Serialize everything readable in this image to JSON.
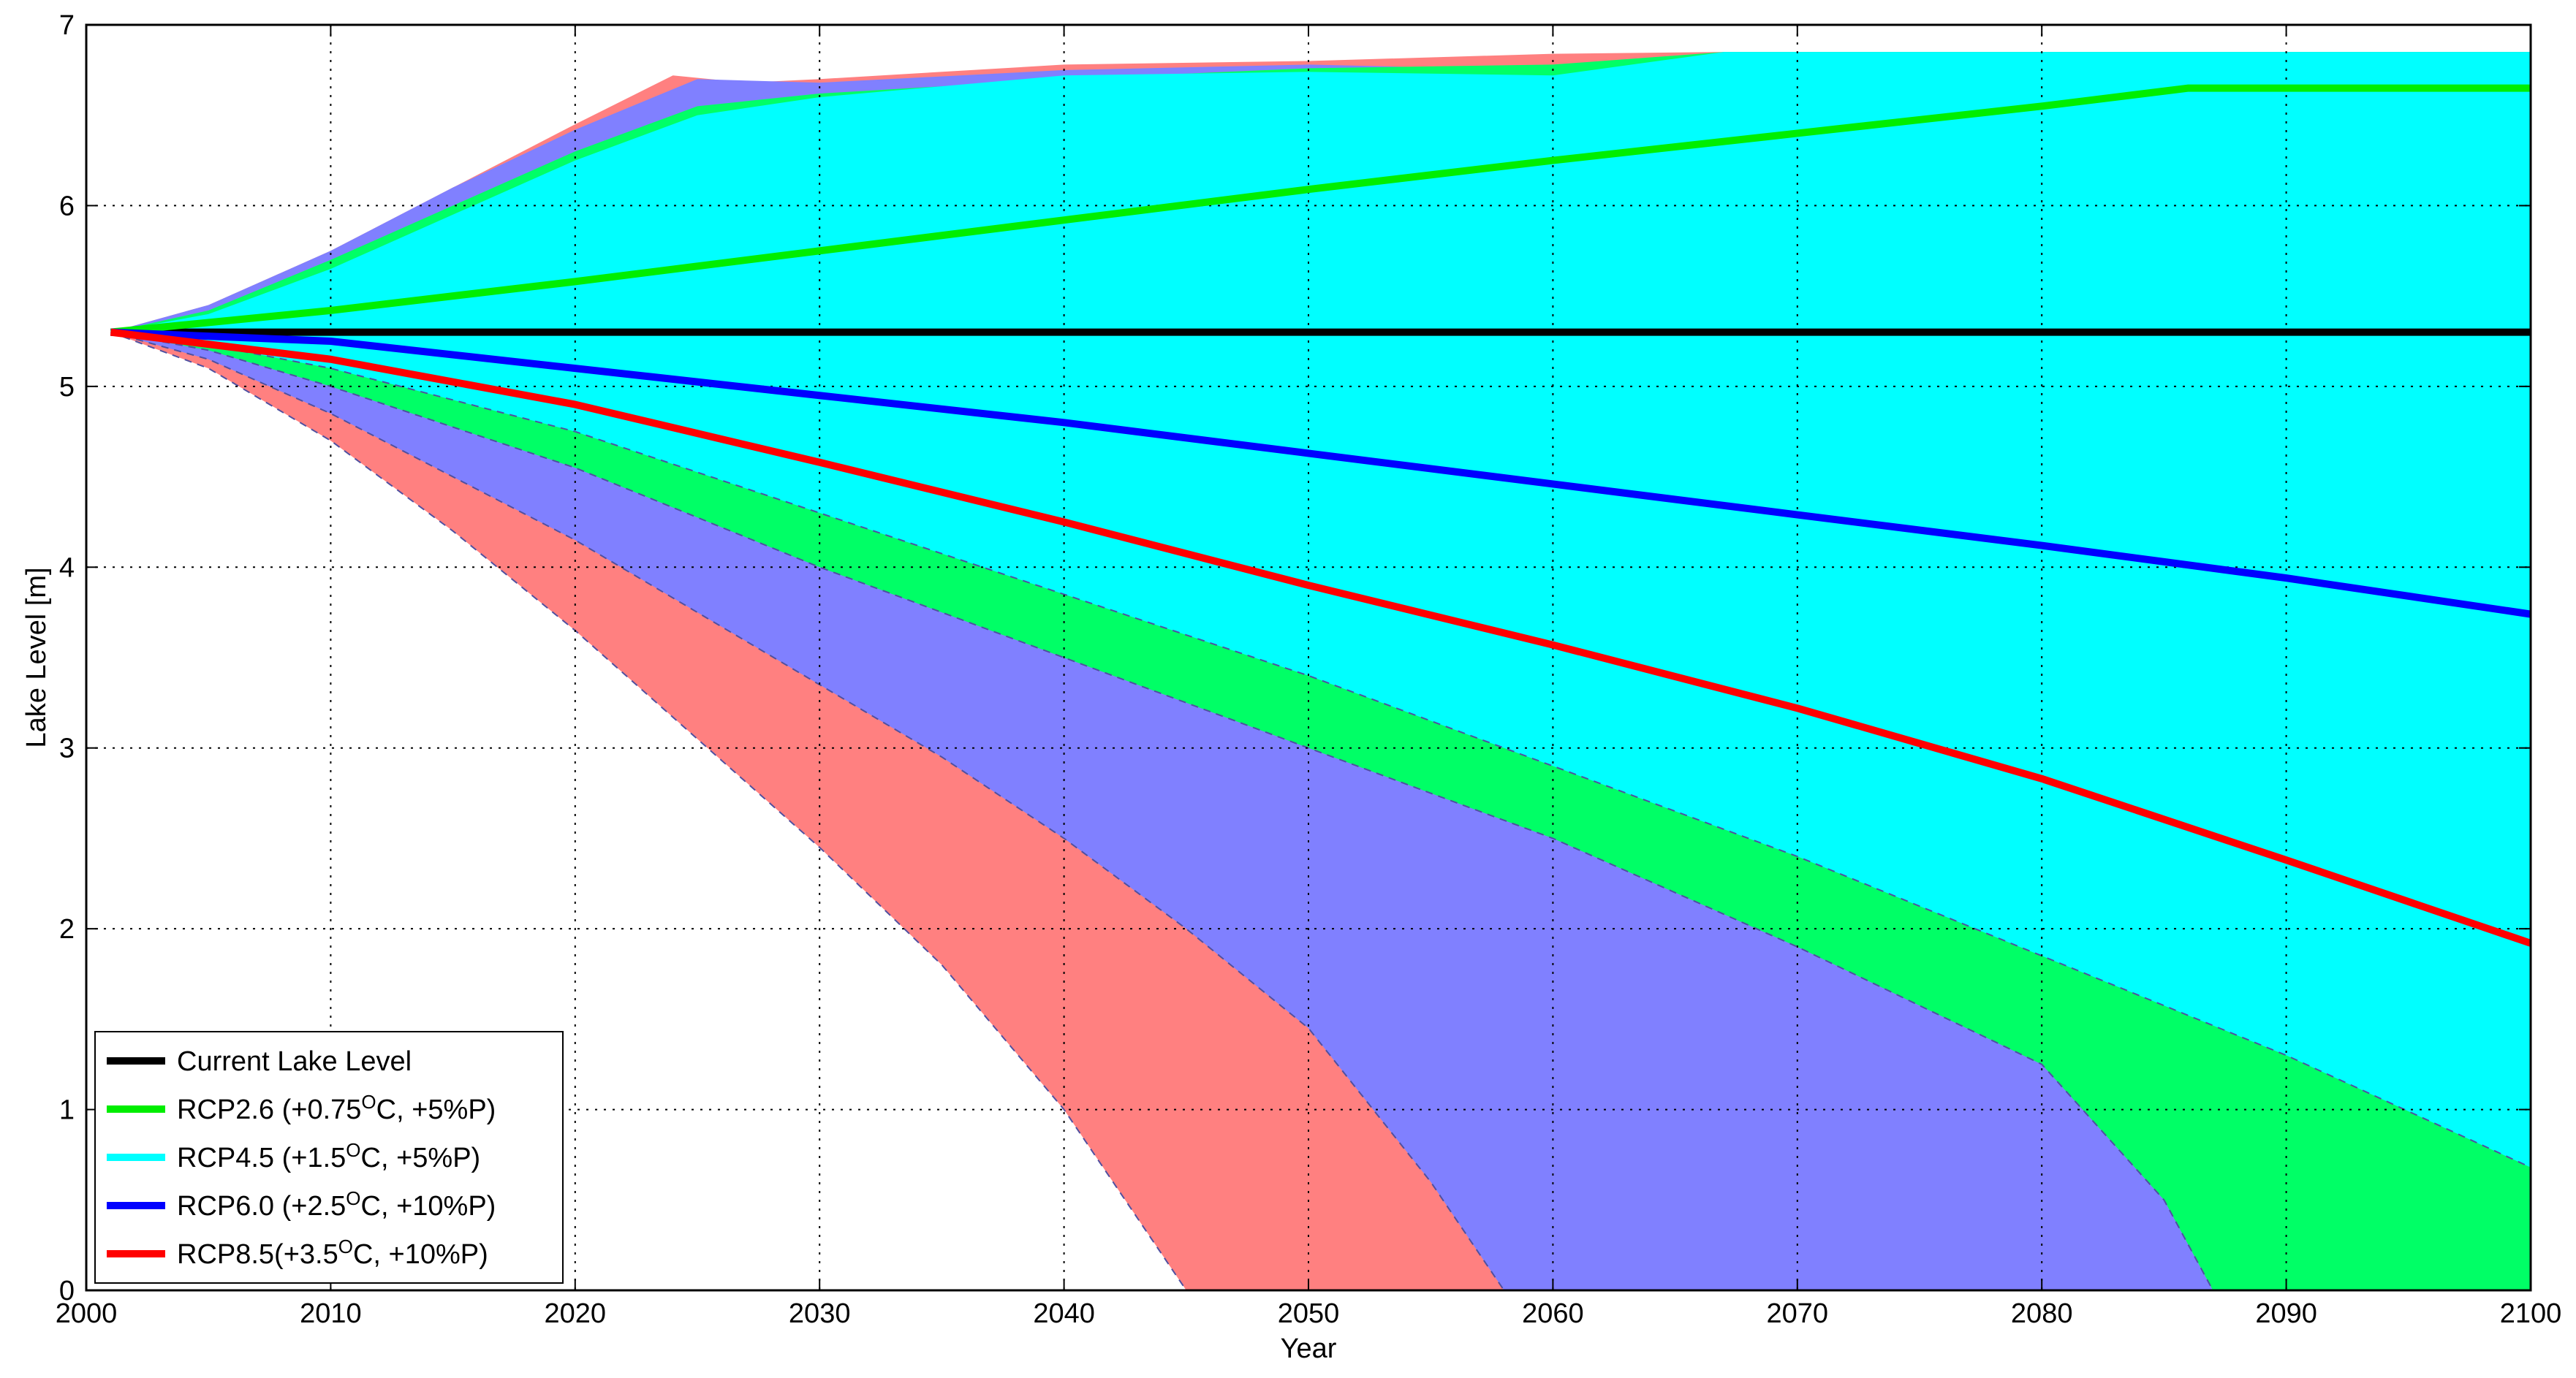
{
  "chart_data": {
    "type": "area",
    "title": "",
    "xlabel": "Year",
    "ylabel": "Lake Level [m]",
    "xlim": [
      2000,
      2100
    ],
    "ylim": [
      0,
      7
    ],
    "xticks": [
      2000,
      2010,
      2020,
      2030,
      2040,
      2050,
      2060,
      2070,
      2080,
      2090,
      2100
    ],
    "yticks": [
      0,
      1,
      2,
      3,
      4,
      5,
      6,
      7
    ],
    "grid": true,
    "legend_position": "bottom-left",
    "bands": [
      {
        "scenario": "RCP8.5",
        "color": "#ff8080",
        "upper": [
          [
            2001,
            5.3
          ],
          [
            2005,
            5.45
          ],
          [
            2010,
            5.75
          ],
          [
            2015,
            6.1
          ],
          [
            2020,
            6.45
          ],
          [
            2024,
            6.72
          ],
          [
            2027,
            6.68
          ],
          [
            2030,
            6.7
          ],
          [
            2040,
            6.78
          ],
          [
            2050,
            6.8
          ],
          [
            2060,
            6.84
          ],
          [
            2067,
            6.85
          ],
          [
            2100,
            6.85
          ]
        ],
        "lower": [
          [
            2001,
            5.3
          ],
          [
            2005,
            5.1
          ],
          [
            2010,
            4.7
          ],
          [
            2015,
            4.2
          ],
          [
            2020,
            3.65
          ],
          [
            2025,
            3.05
          ],
          [
            2030,
            2.45
          ],
          [
            2035,
            1.8
          ],
          [
            2040,
            1.0
          ],
          [
            2045,
            0.0
          ]
        ]
      },
      {
        "scenario": "RCP6.0",
        "color": "#8080ff",
        "upper": [
          [
            2001,
            5.3
          ],
          [
            2005,
            5.45
          ],
          [
            2010,
            5.75
          ],
          [
            2015,
            6.1
          ],
          [
            2020,
            6.42
          ],
          [
            2025,
            6.7
          ],
          [
            2030,
            6.68
          ],
          [
            2040,
            6.75
          ],
          [
            2050,
            6.78
          ],
          [
            2060,
            6.75
          ],
          [
            2067,
            6.85
          ],
          [
            2100,
            6.85
          ]
        ],
        "lower": [
          [
            2001,
            5.3
          ],
          [
            2005,
            5.15
          ],
          [
            2010,
            4.85
          ],
          [
            2015,
            4.5
          ],
          [
            2020,
            4.15
          ],
          [
            2025,
            3.75
          ],
          [
            2030,
            3.35
          ],
          [
            2035,
            2.95
          ],
          [
            2040,
            2.5
          ],
          [
            2045,
            2.0
          ],
          [
            2050,
            1.45
          ],
          [
            2055,
            0.6
          ],
          [
            2058,
            0.0
          ]
        ]
      },
      {
        "scenario": "RCP2.6",
        "color": "#00ff66",
        "upper": [
          [
            2001,
            5.3
          ],
          [
            2005,
            5.42
          ],
          [
            2010,
            5.7
          ],
          [
            2015,
            6.0
          ],
          [
            2020,
            6.3
          ],
          [
            2025,
            6.55
          ],
          [
            2030,
            6.62
          ],
          [
            2040,
            6.7
          ],
          [
            2050,
            6.76
          ],
          [
            2060,
            6.78
          ],
          [
            2067,
            6.85
          ],
          [
            2100,
            6.85
          ]
        ],
        "lower": [
          [
            2001,
            5.3
          ],
          [
            2005,
            5.2
          ],
          [
            2010,
            5.0
          ],
          [
            2020,
            4.55
          ],
          [
            2030,
            4.0
          ],
          [
            2040,
            3.5
          ],
          [
            2050,
            3.0
          ],
          [
            2060,
            2.5
          ],
          [
            2070,
            1.9
          ],
          [
            2080,
            1.25
          ],
          [
            2085,
            0.5
          ],
          [
            2087,
            0.0
          ]
        ]
      },
      {
        "scenario": "RCP4.5",
        "color": "#00ffff",
        "upper": [
          [
            2001,
            5.3
          ],
          [
            2005,
            5.4
          ],
          [
            2010,
            5.65
          ],
          [
            2015,
            5.95
          ],
          [
            2020,
            6.25
          ],
          [
            2025,
            6.5
          ],
          [
            2030,
            6.6
          ],
          [
            2040,
            6.72
          ],
          [
            2050,
            6.74
          ],
          [
            2060,
            6.72
          ],
          [
            2067,
            6.85
          ],
          [
            2100,
            6.85
          ]
        ],
        "lower": [
          [
            2001,
            5.3
          ],
          [
            2005,
            5.23
          ],
          [
            2010,
            5.1
          ],
          [
            2020,
            4.75
          ],
          [
            2030,
            4.3
          ],
          [
            2040,
            3.85
          ],
          [
            2050,
            3.4
          ],
          [
            2060,
            2.9
          ],
          [
            2070,
            2.4
          ],
          [
            2080,
            1.85
          ],
          [
            2090,
            1.3
          ],
          [
            2100,
            0.68
          ]
        ]
      }
    ],
    "series": [
      {
        "name": "Current Lake Level",
        "color": "#000000",
        "x": [
          2001,
          2100
        ],
        "y": [
          5.3,
          5.3
        ]
      },
      {
        "name": "RCP2.6 (+0.75ᴼC, +5%P)",
        "color": "#00ee00",
        "x": [
          2001,
          2010,
          2020,
          2030,
          2040,
          2050,
          2060,
          2070,
          2080,
          2086,
          2100
        ],
        "y": [
          5.3,
          5.42,
          5.58,
          5.75,
          5.92,
          6.09,
          6.25,
          6.4,
          6.55,
          6.65,
          6.65
        ]
      },
      {
        "name": "RCP6.0 (+2.5ᴼC, +10%P)",
        "color": "#0000ff",
        "x": [
          2001,
          2010,
          2020,
          2030,
          2040,
          2050,
          2060,
          2070,
          2080,
          2090,
          2100
        ],
        "y": [
          5.3,
          5.25,
          5.1,
          4.95,
          4.8,
          4.63,
          4.46,
          4.29,
          4.12,
          3.94,
          3.74
        ]
      },
      {
        "name": "RCP8.5(+3.5ᴼC, +10%P)",
        "color": "#ff0000",
        "x": [
          2001,
          2010,
          2020,
          2030,
          2040,
          2050,
          2060,
          2070,
          2080,
          2090,
          2100
        ],
        "y": [
          5.3,
          5.15,
          4.9,
          4.58,
          4.25,
          3.9,
          3.57,
          3.22,
          2.83,
          2.38,
          1.92
        ]
      }
    ],
    "legend": [
      {
        "label": "Current Lake Level",
        "base": "Current Lake Level",
        "sup": "",
        "rest": "",
        "color": "#000000"
      },
      {
        "label": "RCP2.6 (+0.75ᴼC, +5%P)",
        "base": "RCP2.6 (+0.75",
        "sup": "O",
        "rest": "C, +5%P)",
        "color": "#00ee00"
      },
      {
        "label": "RCP4.5 (+1.5ᴼC, +5%P)",
        "base": "RCP4.5 (+1.5",
        "sup": "O",
        "rest": "C, +5%P)",
        "color": "#00ffff"
      },
      {
        "label": "RCP6.0 (+2.5ᴼC, +10%P)",
        "base": "RCP6.0 (+2.5",
        "sup": "O",
        "rest": "C, +10%P)",
        "color": "#0000ff"
      },
      {
        "label": "RCP8.5(+3.5ᴼC, +10%P)",
        "base": "RCP8.5(+3.5",
        "sup": "O",
        "rest": "C, +10%P)",
        "color": "#ff0000"
      }
    ]
  }
}
